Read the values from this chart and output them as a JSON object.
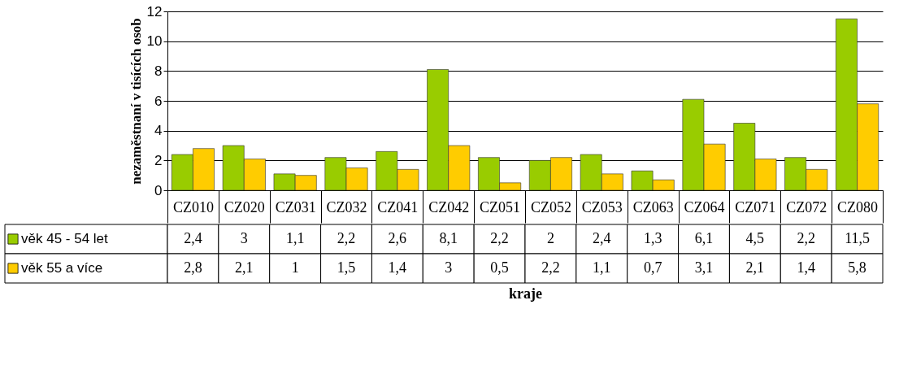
{
  "chart_data": {
    "type": "bar",
    "ylabel": "nezaměstnaní v tisících osob",
    "xlabel": "kraje",
    "categories": [
      "CZ010",
      "CZ020",
      "CZ031",
      "CZ032",
      "CZ041",
      "CZ042",
      "CZ051",
      "CZ052",
      "CZ053",
      "CZ063",
      "CZ064",
      "CZ071",
      "CZ072",
      "CZ080"
    ],
    "series": [
      {
        "name": "věk 45 - 54 let",
        "color": "#99cc00",
        "values": [
          2.4,
          3,
          1.1,
          2.2,
          2.6,
          8.1,
          2.2,
          2,
          2.4,
          1.3,
          6.1,
          4.5,
          2.2,
          11.5
        ],
        "value_labels": [
          "2,4",
          "3",
          "1,1",
          "2,2",
          "2,6",
          "8,1",
          "2,2",
          "2",
          "2,4",
          "1,3",
          "6,1",
          "4,5",
          "2,2",
          "11,5"
        ]
      },
      {
        "name": "věk 55 a více",
        "color": "#ffcc00",
        "values": [
          2.8,
          2.1,
          1,
          1.5,
          1.4,
          3,
          0.5,
          2.2,
          1.1,
          0.7,
          3.1,
          2.1,
          1.4,
          5.8
        ],
        "value_labels": [
          "2,8",
          "2,1",
          "1",
          "1,5",
          "1,4",
          "3",
          "0,5",
          "2,2",
          "1,1",
          "0,7",
          "3,1",
          "2,1",
          "1,4",
          "5,8"
        ]
      }
    ],
    "ylim": [
      0,
      12
    ],
    "yticks": [
      0,
      2,
      4,
      6,
      8,
      10,
      12
    ],
    "grid": "y",
    "legend": "bottom left"
  }
}
